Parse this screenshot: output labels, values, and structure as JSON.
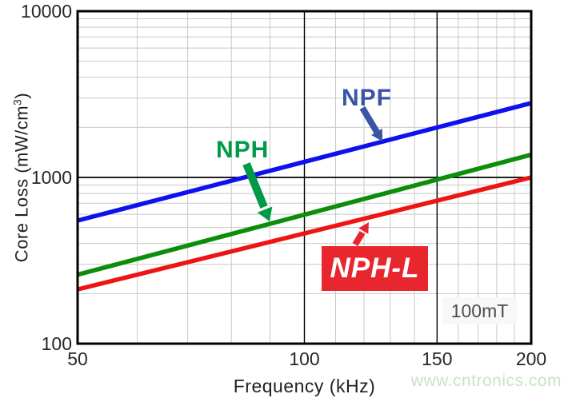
{
  "watermark": "www.cntronics.com",
  "axes": {
    "xlabel": "Frequency (kHz)",
    "ylabel_main": "Core Loss (mW/cm",
    "ylabel_sup": "3",
    "ylabel_close": ")"
  },
  "annotations": {
    "npf_label": "NPF",
    "nph_label": "NPH",
    "nphl_label": "NPH-L",
    "flux_label": "100mT"
  },
  "colors": {
    "npf_line": "#0f10ee",
    "nph_line": "#0b8e0b",
    "nphl_line": "#ee1414",
    "npf_label": "#3a55a4",
    "nph_label": "#009a47",
    "nphl_box": "#e8262d",
    "minor_grid": "#c8c8c8",
    "major_grid": "#000000",
    "watermark": "#c6e6c0"
  },
  "chart_data": {
    "type": "line",
    "title": "",
    "xlabel": "Frequency (kHz)",
    "ylabel": "Core Loss (mW/cm³)",
    "x_scale": "log",
    "y_scale": "log",
    "xlim": [
      50,
      200
    ],
    "ylim": [
      100,
      10000
    ],
    "x_ticks": [
      50,
      100,
      150,
      200
    ],
    "y_ticks": [
      100,
      1000,
      10000
    ],
    "grid": true,
    "legend_position": "inline-annotations",
    "flux_density": "100mT",
    "series": [
      {
        "name": "NPF",
        "color": "#0f10ee",
        "x": [
          50,
          200
        ],
        "y": [
          550,
          2800
        ]
      },
      {
        "name": "NPH",
        "color": "#0b8e0b",
        "x": [
          50,
          200
        ],
        "y": [
          260,
          1370
        ]
      },
      {
        "name": "NPH-L",
        "color": "#ee1414",
        "x": [
          50,
          200
        ],
        "y": [
          212,
          1000
        ]
      }
    ]
  }
}
